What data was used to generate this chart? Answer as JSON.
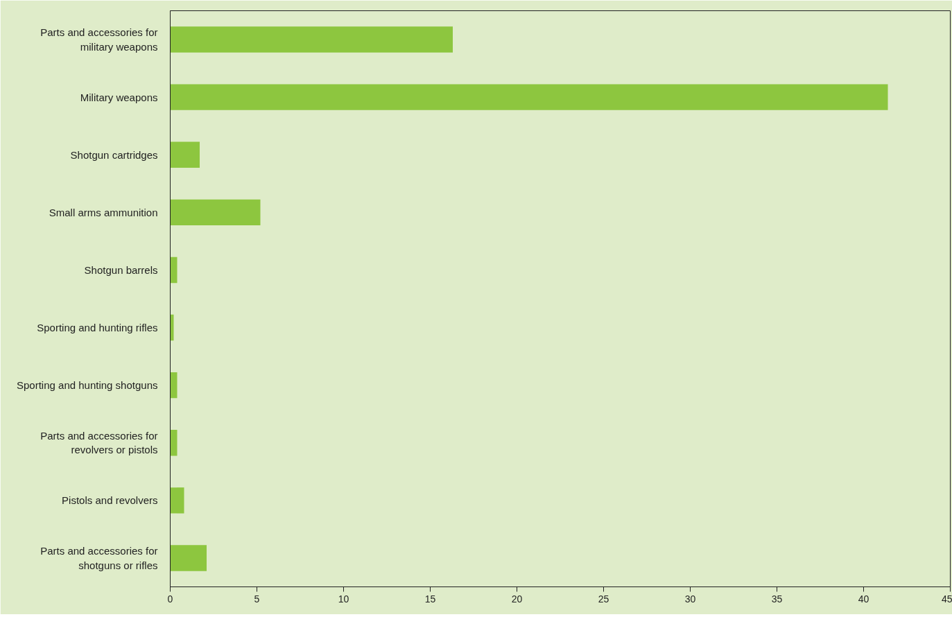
{
  "chart_data": {
    "type": "bar",
    "orientation": "horizontal",
    "categories": [
      "Parts and accessories for military weapons",
      "Military weapons",
      "Shotgun cartridges",
      "Small arms ammunition",
      "Shotgun barrels",
      "Sporting and hunting rifles",
      "Sporting and hunting shotguns",
      "Parts and accessories for revolvers or pistols",
      "Pistols and revolvers",
      "Parts and accessories for shotguns or rifles"
    ],
    "values": [
      16.3,
      41.4,
      1.7,
      5.2,
      0.4,
      0.2,
      0.4,
      0.4,
      0.8,
      2.1
    ],
    "color": "#8dc63f",
    "xlim": [
      0,
      45
    ],
    "xticks": [
      0,
      5,
      10,
      15,
      20,
      25,
      30,
      35,
      40,
      45
    ],
    "grid": false
  }
}
